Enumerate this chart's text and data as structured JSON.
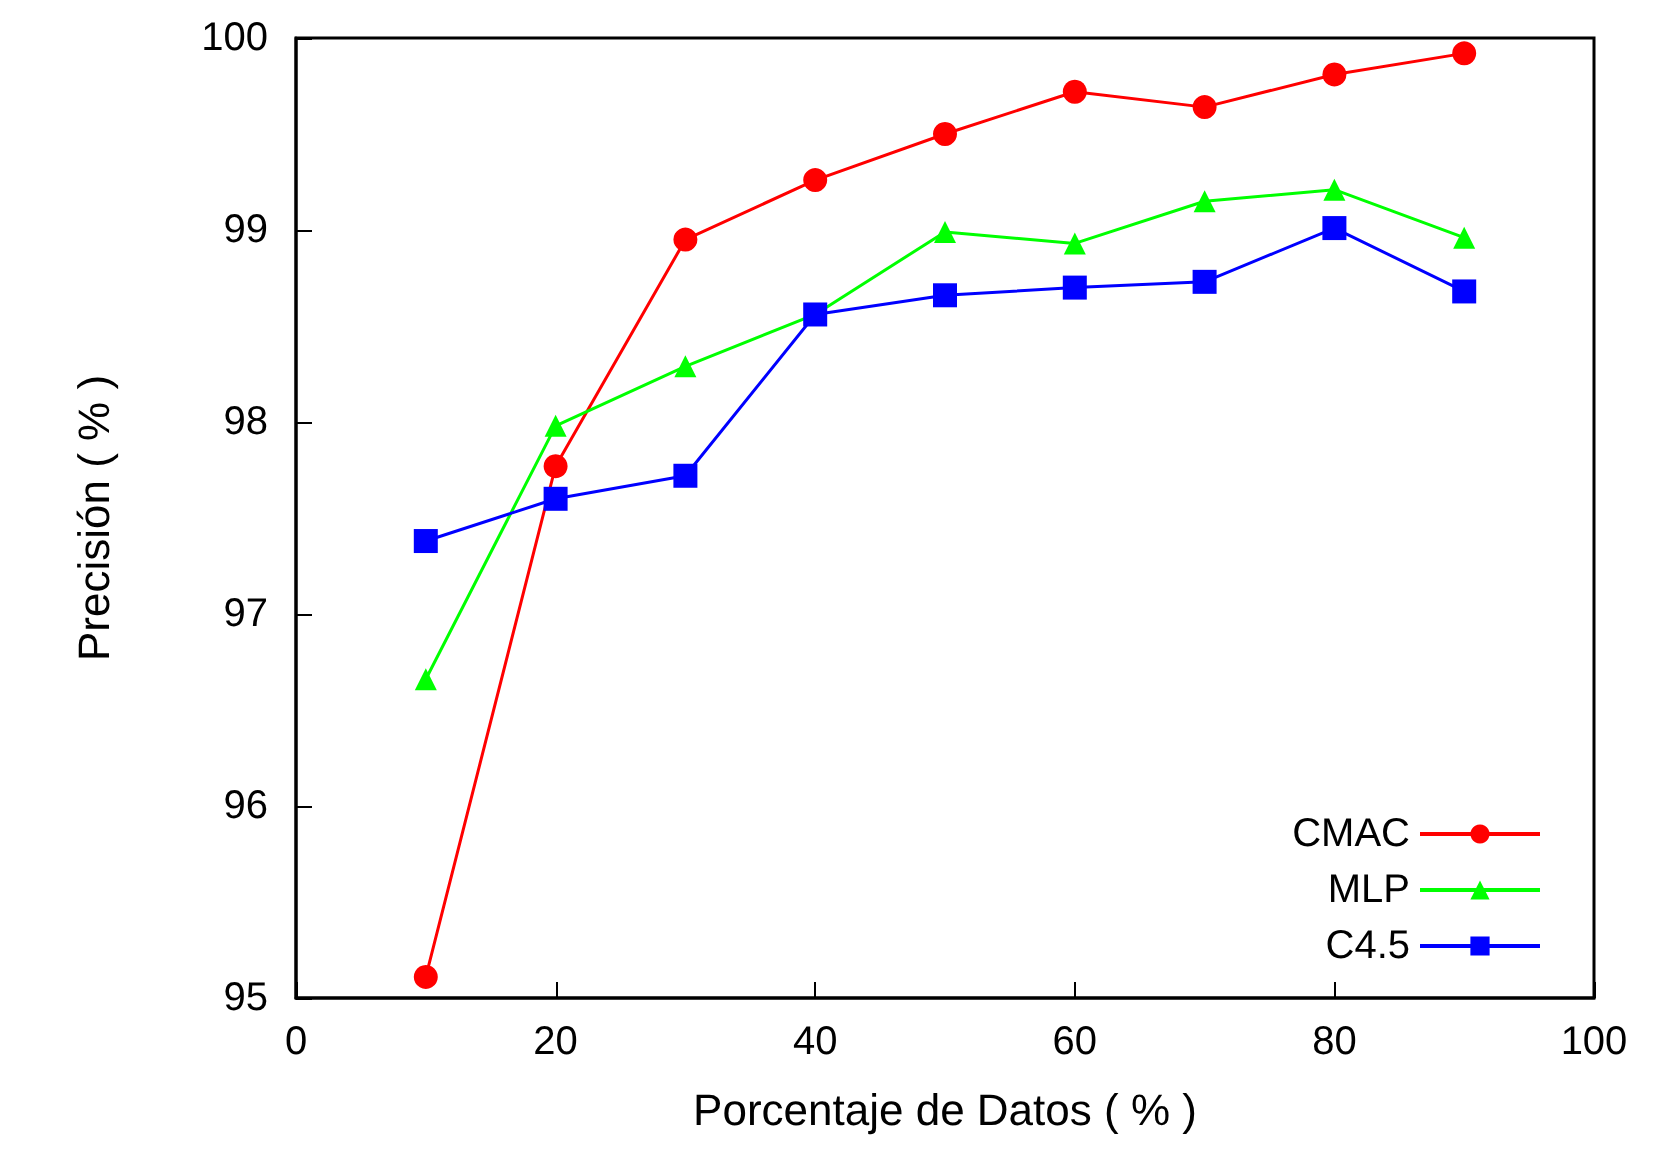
{
  "chart_data": {
    "type": "line",
    "xlabel": "Porcentaje de Datos ( % )",
    "ylabel": "Precisión ( % )",
    "x": [
      10,
      20,
      30,
      40,
      50,
      60,
      70,
      80,
      90
    ],
    "series": [
      {
        "name": "CMAC",
        "color": "#ff0000",
        "marker": "circle",
        "values": [
          95.11,
          97.77,
          98.95,
          99.26,
          99.5,
          99.72,
          99.64,
          99.81,
          99.92
        ]
      },
      {
        "name": "MLP",
        "color": "#00ff00",
        "marker": "triangle",
        "values": [
          96.66,
          97.98,
          98.29,
          98.56,
          98.99,
          98.93,
          99.15,
          99.21,
          98.96
        ]
      },
      {
        "name": "C4.5",
        "color": "#0000ff",
        "marker": "square",
        "values": [
          97.38,
          97.6,
          97.72,
          98.56,
          98.66,
          98.7,
          98.73,
          99.01,
          98.68
        ]
      }
    ],
    "xlim": [
      0,
      100
    ],
    "xticks": [
      0,
      20,
      40,
      60,
      80,
      100
    ],
    "ylim": [
      95,
      100
    ],
    "yticks": [
      95,
      96,
      97,
      98,
      99,
      100
    ],
    "grid": false,
    "legend": "bottom right",
    "line_style": "solid"
  }
}
